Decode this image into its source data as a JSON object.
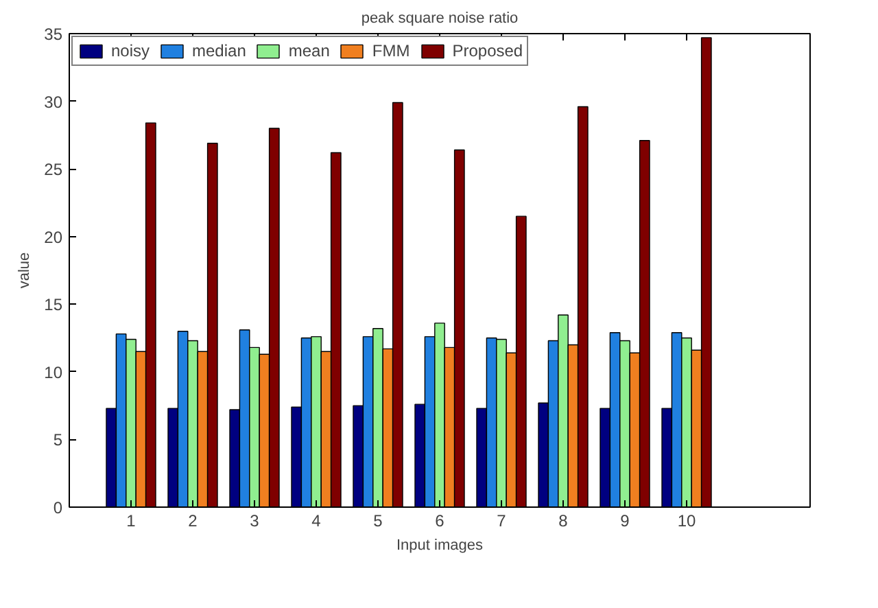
{
  "chart_data": {
    "type": "bar",
    "title": "peak square noise ratio",
    "xlabel": "Input images",
    "ylabel": "value",
    "x": [
      1,
      2,
      3,
      4,
      5,
      6,
      7,
      8,
      9,
      10
    ],
    "xlim": [
      0,
      12
    ],
    "xticks": [
      1,
      2,
      3,
      4,
      5,
      6,
      7,
      8,
      9,
      10
    ],
    "ylim": [
      0,
      35
    ],
    "yticks": [
      0,
      5,
      10,
      15,
      20,
      25,
      30,
      35
    ],
    "grid": false,
    "legend": "top left",
    "series": [
      {
        "name": "noisy",
        "color": "#000080",
        "values": [
          7.3,
          7.3,
          7.2,
          7.4,
          7.5,
          7.6,
          7.3,
          7.7,
          7.3,
          7.3
        ]
      },
      {
        "name": "median",
        "color": "#2080e0",
        "values": [
          12.8,
          13.0,
          13.1,
          12.5,
          12.6,
          12.6,
          12.5,
          12.3,
          12.9,
          12.9
        ]
      },
      {
        "name": "mean",
        "color": "#90ee90",
        "values": [
          12.4,
          12.3,
          11.8,
          12.6,
          13.2,
          13.6,
          12.4,
          14.2,
          12.3,
          12.5
        ]
      },
      {
        "name": "FMM",
        "color": "#f07f20",
        "values": [
          11.5,
          11.5,
          11.3,
          11.5,
          11.7,
          11.8,
          11.4,
          12.0,
          11.4,
          11.6
        ]
      },
      {
        "name": "Proposed",
        "color": "#7f0000",
        "values": [
          28.4,
          26.9,
          28.0,
          26.2,
          29.9,
          26.4,
          21.5,
          29.6,
          27.1,
          34.7
        ]
      }
    ]
  }
}
